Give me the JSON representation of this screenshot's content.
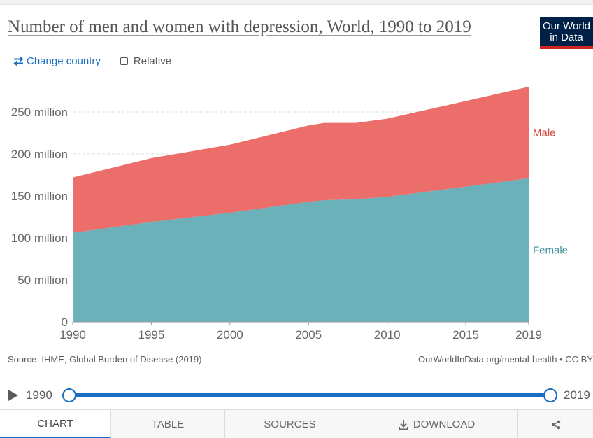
{
  "header": {
    "title": "Number of men and women with depression, World, 1990 to 2019",
    "logo_line1": "Our World",
    "logo_line2": "in Data"
  },
  "controls": {
    "change_country": "Change country",
    "relative": "Relative"
  },
  "chart_data": {
    "type": "area",
    "stacked": true,
    "x": [
      1990,
      1995,
      2000,
      2005,
      2006,
      2008,
      2010,
      2015,
      2019
    ],
    "series": [
      {
        "name": "Female",
        "color": "#6bb1ba",
        "values": [
          106,
          119,
          130,
          143,
          145,
          146,
          149,
          161,
          171
        ]
      },
      {
        "name": "Male",
        "color": "#eb6e6a",
        "values": [
          66,
          76,
          81,
          91,
          92,
          91,
          93,
          102,
          109
        ]
      }
    ],
    "xticks": [
      "1990",
      "1995",
      "2000",
      "2005",
      "2010",
      "2015",
      "2019"
    ],
    "yticks": [
      "0",
      "50 million",
      "100 million",
      "150 million",
      "200 million",
      "250 million"
    ],
    "ylim": [
      0,
      280
    ],
    "xlim": [
      1990,
      2019
    ],
    "grid": "horizontal dashed",
    "legend": "right, inline labels"
  },
  "footer": {
    "source": "Source: IHME, Global Burden of Disease (2019)",
    "link": "OurWorldInData.org/mental-health • CC BY"
  },
  "timeline": {
    "start": "1990",
    "end": "2019"
  },
  "tabs": {
    "chart": "CHART",
    "table": "TABLE",
    "sources": "SOURCES",
    "download": "DOWNLOAD"
  }
}
